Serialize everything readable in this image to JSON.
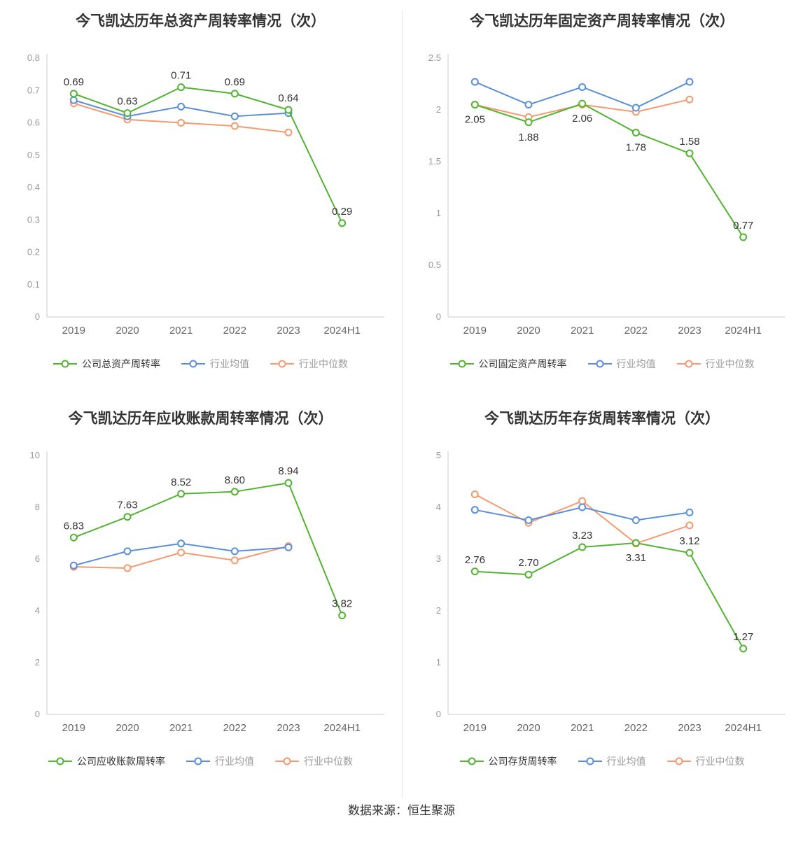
{
  "page": {
    "source_note": "数据来源：恒生聚源"
  },
  "colors": {
    "company": "#53b332",
    "mean": "#5b8fd9",
    "median": "#f59a6f",
    "axis": "#cccccc",
    "tick_text": "#999999",
    "xlabel_text": "#666666",
    "value_label": "#333333"
  },
  "chart_data": [
    {
      "type": "line",
      "title": "今飞凯达历年总资产周转率情况（次）",
      "categories": [
        "2019",
        "2020",
        "2021",
        "2022",
        "2023",
        "2024H1"
      ],
      "ylim": [
        0,
        0.8
      ],
      "yticks": [
        "0",
        "0.1",
        "0.2",
        "0.3",
        "0.4",
        "0.5",
        "0.6",
        "0.7",
        "0.8"
      ],
      "legend_position": "bottom",
      "grid": false,
      "series": [
        {
          "name": "公司总资产周转率",
          "color": "company",
          "show_labels": true,
          "values": [
            0.69,
            0.63,
            0.71,
            0.69,
            0.64,
            0.29
          ],
          "label_texts": [
            "0.69",
            "0.63",
            "0.71",
            "0.69",
            "0.64",
            "0.29"
          ]
        },
        {
          "name": "行业均值",
          "color": "mean",
          "show_labels": false,
          "values": [
            0.67,
            0.62,
            0.65,
            0.62,
            0.63,
            null
          ]
        },
        {
          "name": "行业中位数",
          "color": "median",
          "show_labels": false,
          "values": [
            0.66,
            0.61,
            0.6,
            0.59,
            0.57,
            null
          ]
        }
      ]
    },
    {
      "type": "line",
      "title": "今飞凯达历年固定资产周转率情况（次）",
      "categories": [
        "2019",
        "2020",
        "2021",
        "2022",
        "2023",
        "2024H1"
      ],
      "ylim": [
        0,
        2.5
      ],
      "yticks": [
        "0",
        "0.5",
        "1",
        "1.5",
        "2",
        "2.5"
      ],
      "legend_position": "bottom",
      "grid": false,
      "series": [
        {
          "name": "公司固定资产周转率",
          "color": "company",
          "show_labels": true,
          "values": [
            2.05,
            1.88,
            2.06,
            1.78,
            1.58,
            0.77
          ],
          "label_texts": [
            "2.05",
            "1.88",
            "2.06",
            "1.78",
            "1.58",
            "0.77"
          ]
        },
        {
          "name": "行业均值",
          "color": "mean",
          "show_labels": false,
          "values": [
            2.27,
            2.05,
            2.22,
            2.02,
            2.27,
            null
          ]
        },
        {
          "name": "行业中位数",
          "color": "median",
          "show_labels": false,
          "values": [
            2.05,
            1.93,
            2.05,
            1.98,
            2.1,
            null
          ]
        }
      ]
    },
    {
      "type": "line",
      "title": "今飞凯达历年应收账款周转率情况（次）",
      "categories": [
        "2019",
        "2020",
        "2021",
        "2022",
        "2023",
        "2024H1"
      ],
      "ylim": [
        0,
        10
      ],
      "yticks": [
        "0",
        "2",
        "4",
        "6",
        "8",
        "10"
      ],
      "legend_position": "bottom",
      "grid": false,
      "series": [
        {
          "name": "公司应收账款周转率",
          "color": "company",
          "show_labels": true,
          "values": [
            6.83,
            7.63,
            8.52,
            8.6,
            8.94,
            3.82
          ],
          "label_texts": [
            "6.83",
            "7.63",
            "8.52",
            "8.60",
            "8.94",
            "3.82"
          ]
        },
        {
          "name": "行业均值",
          "color": "mean",
          "show_labels": false,
          "values": [
            5.75,
            6.3,
            6.6,
            6.3,
            6.45,
            null
          ]
        },
        {
          "name": "行业中位数",
          "color": "median",
          "show_labels": false,
          "values": [
            5.7,
            5.65,
            6.25,
            5.95,
            6.5,
            null
          ]
        }
      ]
    },
    {
      "type": "line",
      "title": "今飞凯达历年存货周转率情况（次）",
      "categories": [
        "2019",
        "2020",
        "2021",
        "2022",
        "2023",
        "2024H1"
      ],
      "ylim": [
        0,
        5
      ],
      "yticks": [
        "0",
        "1",
        "2",
        "3",
        "4",
        "5"
      ],
      "legend_position": "bottom",
      "grid": false,
      "series": [
        {
          "name": "公司存货周转率",
          "color": "company",
          "show_labels": true,
          "values": [
            2.76,
            2.7,
            3.23,
            3.31,
            3.12,
            1.27
          ],
          "label_texts": [
            "2.76",
            "2.70",
            "3.23",
            "3.31",
            "3.12",
            "1.27"
          ]
        },
        {
          "name": "行业均值",
          "color": "mean",
          "show_labels": false,
          "values": [
            3.95,
            3.75,
            4.0,
            3.75,
            3.9,
            null
          ]
        },
        {
          "name": "行业中位数",
          "color": "median",
          "show_labels": false,
          "values": [
            4.25,
            3.7,
            4.12,
            3.3,
            3.65,
            null
          ]
        }
      ]
    }
  ]
}
